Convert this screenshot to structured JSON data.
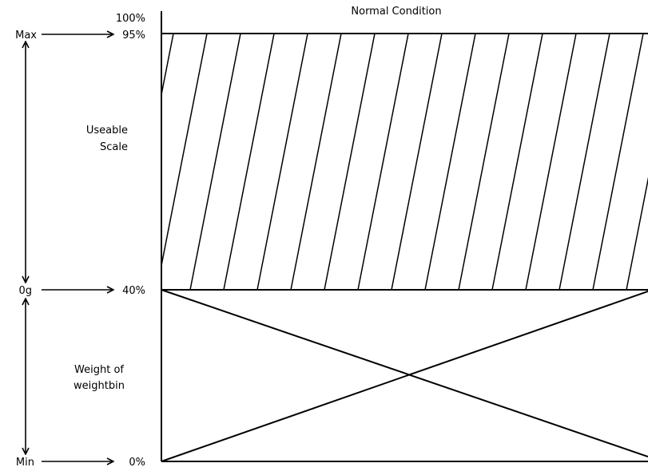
{
  "title": "Normal Condition",
  "scale": {
    "top_label": "100%",
    "max_percent_label": "95%",
    "zero_percent_label": "40%",
    "min_percent_label": "0%"
  },
  "markers": {
    "max": "Max",
    "zero": "0g",
    "min": "Min"
  },
  "regions": {
    "useable_scale": [
      "Useable",
      "Scale"
    ],
    "weight_of_weightbin": [
      "Weight of",
      "weightbin"
    ]
  },
  "colors": {
    "line": "#000000",
    "background": "#ffffff"
  }
}
